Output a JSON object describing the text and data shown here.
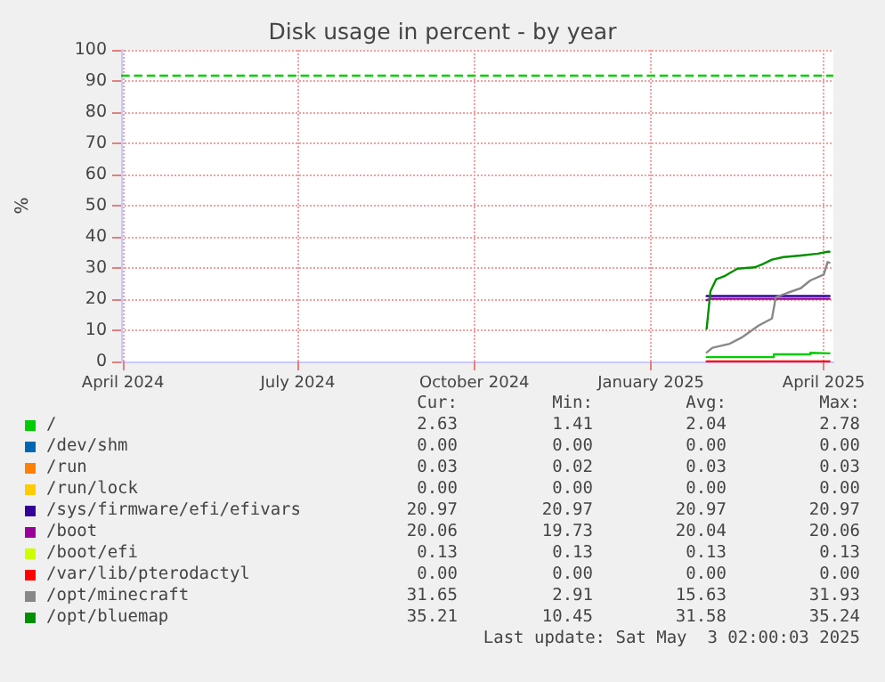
{
  "chart_data": {
    "type": "line",
    "title": "Disk usage in percent - by year",
    "ylabel": "%",
    "xlim": [
      "2024-03-31",
      "2025-04-06"
    ],
    "xticks": [
      {
        "value": "2024-04-01",
        "label": "April 2024"
      },
      {
        "value": "2024-07-01",
        "label": "July 2024"
      },
      {
        "value": "2024-10-01",
        "label": "October 2024"
      },
      {
        "value": "2025-01-01",
        "label": "January 2025"
      },
      {
        "value": "2025-04-01",
        "label": "April 2025"
      }
    ],
    "ylim": [
      0,
      100
    ],
    "yticks": [
      0,
      10,
      20,
      30,
      40,
      50,
      60,
      70,
      80,
      90,
      100
    ],
    "grid": true,
    "legend": "bottom",
    "marker": "none",
    "line_style": "solid",
    "ref_lines": [
      {
        "axis": "y",
        "value": 92,
        "color": "#00cc00",
        "line_style": "dashed"
      }
    ],
    "series": [
      {
        "name": "/",
        "color": "#00cc00",
        "x": [
          "2025-01-30",
          "2025-03-06",
          "2025-03-06",
          "2025-03-25",
          "2025-03-25",
          "2025-04-04"
        ],
        "values": [
          1.4,
          1.4,
          2.3,
          2.3,
          2.8,
          2.6
        ]
      },
      {
        "name": "/dev/shm",
        "color": "#0066b3"
      },
      {
        "name": "/run",
        "color": "#ff8000"
      },
      {
        "name": "/run/lock",
        "color": "#ffcc00"
      },
      {
        "name": "/sys/firmware/efi/efivars",
        "color": "#330099",
        "x": [
          "2025-01-30",
          "2025-04-04"
        ],
        "values": [
          21,
          21
        ]
      },
      {
        "name": "/boot",
        "color": "#990099",
        "x": [
          "2025-01-30",
          "2025-02-01",
          "2025-04-04"
        ],
        "values": [
          19.7,
          20.1,
          20.1
        ]
      },
      {
        "name": "/boot/efi",
        "color": "#ccff00"
      },
      {
        "name": "/var/lib/pterodactyl",
        "color": "#ff0000",
        "x": [
          "2025-01-30",
          "2025-04-04"
        ],
        "values": [
          0,
          0
        ]
      },
      {
        "name": "/opt/minecraft",
        "color": "#888888",
        "x": [
          "2025-01-30",
          "2025-02-02",
          "2025-02-11",
          "2025-02-17",
          "2025-02-26",
          "2025-03-05",
          "2025-03-07",
          "2025-03-13",
          "2025-03-20",
          "2025-03-25",
          "2025-04-01",
          "2025-04-03",
          "2025-04-04"
        ],
        "values": [
          2.9,
          4.4,
          5.7,
          7.6,
          11.5,
          13.8,
          20.6,
          22,
          23.5,
          26,
          27.9,
          31.9,
          31.7
        ]
      },
      {
        "name": "/opt/bluemap",
        "color": "#008f00",
        "x": [
          "2025-01-30",
          "2025-02-01",
          "2025-02-04",
          "2025-02-08",
          "2025-02-15",
          "2025-02-24",
          "2025-02-28",
          "2025-03-05",
          "2025-03-11",
          "2025-03-20",
          "2025-03-29",
          "2025-04-03",
          "2025-04-04"
        ],
        "values": [
          10.5,
          22.6,
          26.4,
          27.3,
          29.8,
          30.2,
          31.2,
          32.7,
          33.5,
          34,
          34.6,
          35.2,
          35.2
        ]
      }
    ],
    "annotations": [
      "Cur:",
      "Min:",
      "Avg:",
      "Max:",
      "2.63",
      "1.41",
      "2.04",
      "2.78",
      "0.00",
      "0.00",
      "0.00",
      "0.00",
      "0.03",
      "0.02",
      "0.03",
      "0.03",
      "0.00",
      "0.00",
      "0.00",
      "0.00",
      "20.97",
      "20.97",
      "20.97",
      "20.97",
      "20.06",
      "19.73",
      "20.04",
      "20.06",
      "0.13",
      "0.13",
      "0.13",
      "0.13",
      "0.00",
      "0.00",
      "0.00",
      "0.00",
      "31.65",
      "2.91",
      "15.63",
      "31.93",
      "35.21",
      "10.45",
      "31.58",
      "35.24",
      "Last update: Sat May  3 02:00:03 2025"
    ]
  }
}
